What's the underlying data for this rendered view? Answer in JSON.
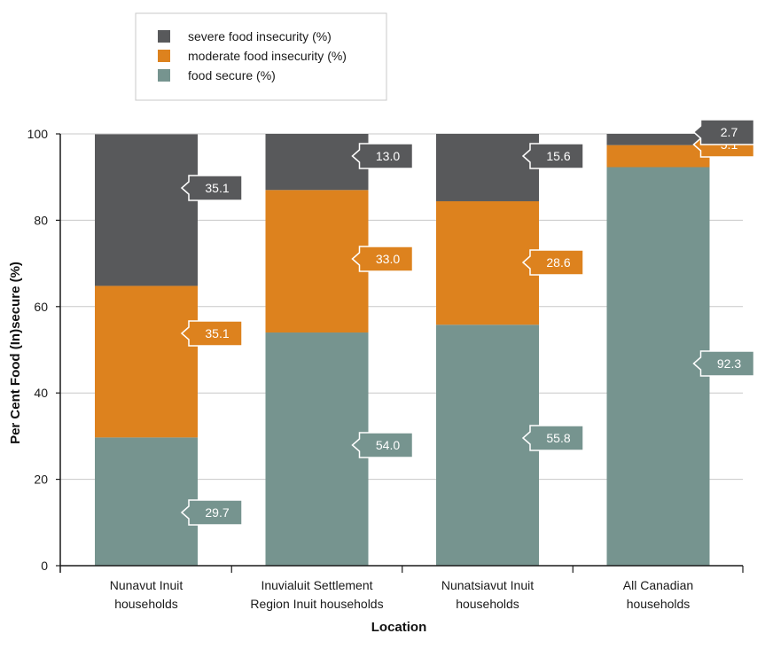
{
  "chart_data": {
    "type": "bar",
    "stacked": true,
    "categories": [
      [
        "Nunavut Inuit",
        "households"
      ],
      [
        "Inuvialuit Settlement",
        "Region Inuit households"
      ],
      [
        "Nunatsiavut Inuit",
        "households"
      ],
      [
        "All Canadian",
        "households"
      ]
    ],
    "series": [
      {
        "name": "food secure (%)",
        "color": "#76948f",
        "values": [
          29.7,
          54.0,
          55.8,
          92.3
        ],
        "labels": [
          "29.7",
          "54.0",
          "55.8",
          "92.3"
        ]
      },
      {
        "name": "moderate food insecurity (%)",
        "color": "#dd821e",
        "values": [
          35.1,
          33.0,
          28.6,
          5.1
        ],
        "labels": [
          "35.1",
          "33.0",
          "28.6",
          "5.1"
        ]
      },
      {
        "name": "severe food insecurity (%)",
        "color": "#58595b",
        "values": [
          35.1,
          13.0,
          15.6,
          2.7
        ],
        "labels": [
          "35.1",
          "13.0",
          "15.6",
          "2.7"
        ]
      }
    ],
    "legend_order": [
      2,
      1,
      0
    ],
    "legend_position": "top-left",
    "xlabel": "Location",
    "ylabel": "Per Cent Food (In)secure (%)",
    "ylim": [
      0,
      100
    ],
    "yticks": [
      0,
      20,
      40,
      60,
      80,
      100
    ],
    "grid": true
  }
}
